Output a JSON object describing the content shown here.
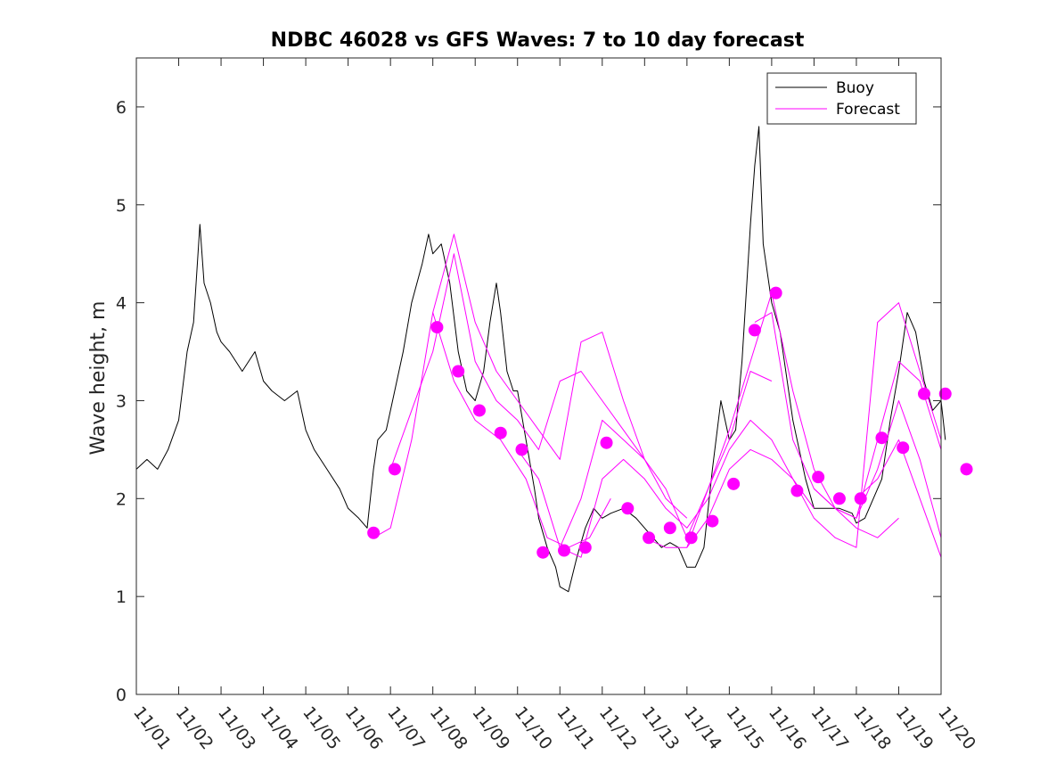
{
  "chart_data": {
    "type": "line",
    "title": "NDBC 46028 vs GFS Waves: 7 to 10 day forecast",
    "xlabel": "",
    "ylabel": "Wave height, m",
    "xlim": [
      0,
      19
    ],
    "ylim": [
      0,
      6.5
    ],
    "x_unit": "days since 11/01",
    "x_tick_labels": [
      "11/01",
      "11/02",
      "11/03",
      "11/04",
      "11/05",
      "11/06",
      "11/07",
      "11/08",
      "11/09",
      "11/10",
      "11/11",
      "11/12",
      "11/13",
      "11/14",
      "11/15",
      "11/16",
      "11/17",
      "11/18",
      "11/19",
      "11/20"
    ],
    "y_ticks": [
      0,
      1,
      2,
      3,
      4,
      5,
      6
    ],
    "y_tick_labels": [
      "0",
      "1",
      "2",
      "3",
      "4",
      "5",
      "6"
    ],
    "legend": {
      "position": "top-right",
      "entries": [
        {
          "label": "Buoy",
          "color": "#000000"
        },
        {
          "label": "Forecast",
          "color": "#ff00ff"
        }
      ]
    },
    "series": [
      {
        "name": "Buoy",
        "color": "#000000",
        "x": [
          0,
          0.25,
          0.5,
          0.75,
          1.0,
          1.2,
          1.35,
          1.5,
          1.6,
          1.75,
          1.9,
          2.0,
          2.2,
          2.5,
          2.8,
          3.0,
          3.2,
          3.5,
          3.8,
          4.0,
          4.2,
          4.5,
          4.8,
          5.0,
          5.25,
          5.45,
          5.6,
          5.7,
          5.9,
          6.1,
          6.3,
          6.5,
          6.75,
          6.9,
          7.0,
          7.2,
          7.4,
          7.6,
          7.8,
          8.0,
          8.2,
          8.35,
          8.5,
          8.6,
          8.75,
          8.9,
          9.0,
          9.2,
          9.4,
          9.5,
          9.7,
          9.9,
          10.0,
          10.2,
          10.4,
          10.6,
          10.8,
          11.0,
          11.2,
          11.5,
          11.8,
          12.0,
          12.2,
          12.4,
          12.6,
          12.8,
          13.0,
          13.2,
          13.4,
          13.6,
          13.8,
          14.0,
          14.15,
          14.3,
          14.5,
          14.6,
          14.7,
          14.8,
          15.0,
          15.2,
          15.5,
          15.8,
          16.0,
          16.3,
          16.6,
          16.9,
          17.0,
          17.2,
          17.4,
          17.6,
          17.8,
          18.0,
          18.2,
          18.4,
          18.6,
          18.8,
          19.0,
          19.1
        ],
        "values": [
          2.3,
          2.4,
          2.3,
          2.5,
          2.8,
          3.5,
          3.8,
          4.8,
          4.2,
          4.0,
          3.7,
          3.6,
          3.5,
          3.3,
          3.5,
          3.2,
          3.1,
          3.0,
          3.1,
          2.7,
          2.5,
          2.3,
          2.1,
          1.9,
          1.8,
          1.7,
          2.3,
          2.6,
          2.7,
          3.1,
          3.5,
          4.0,
          4.4,
          4.7,
          4.5,
          4.6,
          4.2,
          3.5,
          3.1,
          3.0,
          3.3,
          3.8,
          4.2,
          3.9,
          3.3,
          3.1,
          3.1,
          2.6,
          2.1,
          1.8,
          1.5,
          1.3,
          1.1,
          1.05,
          1.4,
          1.7,
          1.9,
          1.8,
          1.85,
          1.9,
          1.8,
          1.7,
          1.6,
          1.5,
          1.55,
          1.5,
          1.3,
          1.3,
          1.5,
          2.3,
          3.0,
          2.6,
          2.7,
          3.4,
          4.8,
          5.4,
          5.8,
          4.6,
          4.0,
          3.7,
          2.8,
          2.2,
          1.9,
          1.9,
          1.9,
          1.85,
          1.75,
          1.8,
          2.0,
          2.2,
          2.8,
          3.3,
          3.9,
          3.7,
          3.2,
          2.9,
          3.0,
          2.6
        ]
      },
      {
        "name": "Forecast",
        "color": "#ff00ff",
        "x": [
          5.6,
          6.0,
          6.5,
          7.0,
          7.5,
          8.0,
          8.6,
          9.2,
          9.7,
          10.2,
          10.7,
          11.2
        ],
        "values": [
          1.6,
          1.7,
          2.6,
          3.9,
          3.2,
          2.8,
          2.6,
          2.2,
          1.6,
          1.5,
          1.6,
          2.0
        ]
      },
      {
        "name": "Forecast",
        "color": "#ff00ff",
        "x": [
          6.0,
          6.5,
          7.0,
          7.5,
          8.0,
          8.5,
          9.0,
          9.5,
          10.0,
          10.5,
          11.0,
          11.5,
          12.0
        ],
        "values": [
          2.3,
          2.9,
          3.5,
          4.5,
          3.4,
          3.0,
          2.8,
          2.5,
          3.2,
          3.3,
          3.0,
          2.7,
          2.4
        ]
      },
      {
        "name": "Forecast",
        "color": "#ff00ff",
        "x": [
          7.0,
          7.5,
          8.0,
          8.5,
          9.0,
          9.5,
          10.0,
          10.5,
          11.0,
          11.5,
          12.0,
          12.5,
          13.0
        ],
        "values": [
          3.9,
          4.7,
          3.8,
          3.3,
          3.0,
          2.7,
          2.4,
          3.6,
          3.7,
          3.0,
          2.4,
          2.0,
          1.8
        ]
      },
      {
        "name": "Forecast",
        "color": "#ff00ff",
        "x": [
          9.0,
          9.5,
          10.0,
          10.5,
          11.0,
          11.5,
          12.0,
          12.5,
          13.0,
          13.5,
          14.0,
          14.5,
          15.0
        ],
        "values": [
          2.5,
          2.2,
          1.5,
          2.0,
          2.8,
          2.6,
          2.4,
          2.1,
          1.6,
          2.1,
          2.6,
          3.3,
          3.2
        ]
      },
      {
        "name": "Forecast",
        "color": "#ff00ff",
        "x": [
          10.0,
          10.5,
          11.0,
          11.5,
          12.0,
          12.5,
          13.0,
          13.5,
          14.0,
          14.5,
          15.0,
          15.5,
          16.0
        ],
        "values": [
          1.5,
          1.4,
          2.2,
          2.4,
          2.2,
          1.9,
          1.7,
          2.0,
          2.5,
          2.8,
          2.6,
          2.2,
          1.9
        ]
      },
      {
        "name": "Forecast",
        "color": "#ff00ff",
        "x": [
          12.0,
          12.5,
          13.0,
          13.5,
          14.0,
          14.5,
          15.0,
          15.5,
          16.0,
          16.5,
          17.0,
          17.5,
          18.0
        ],
        "values": [
          1.6,
          1.5,
          1.5,
          2.1,
          2.7,
          3.4,
          4.1,
          3.1,
          2.3,
          1.9,
          1.7,
          1.6,
          1.8
        ]
      },
      {
        "name": "Forecast",
        "color": "#ff00ff",
        "x": [
          13.0,
          13.5,
          14.0,
          14.5,
          15.0,
          15.5,
          16.0,
          16.5,
          17.0,
          17.5,
          18.0,
          18.5,
          19.0
        ],
        "values": [
          1.5,
          1.8,
          2.3,
          2.5,
          2.4,
          2.2,
          1.8,
          1.6,
          1.5,
          3.8,
          4.0,
          3.3,
          2.6
        ]
      },
      {
        "name": "Forecast",
        "color": "#ff00ff",
        "x": [
          14.6,
          15.0,
          15.5,
          16.0,
          16.5,
          17.0,
          17.5,
          18.0,
          18.5,
          19.0
        ],
        "values": [
          3.8,
          3.9,
          2.6,
          2.1,
          1.9,
          1.8,
          2.6,
          3.4,
          3.2,
          2.5
        ]
      },
      {
        "name": "Forecast",
        "color": "#ff00ff",
        "x": [
          16.0,
          16.5,
          17.0,
          17.5,
          18.0,
          18.5,
          19.0
        ],
        "values": [
          2.1,
          1.9,
          1.8,
          2.3,
          3.0,
          2.4,
          1.6
        ]
      },
      {
        "name": "Forecast",
        "color": "#ff00ff",
        "x": [
          17.0,
          17.5,
          18.0,
          18.5,
          19.0
        ],
        "values": [
          2.0,
          2.2,
          2.6,
          2.0,
          1.4
        ]
      },
      {
        "name": "Forecast points",
        "color": "#ff00ff",
        "type": "scatter",
        "x": [
          5.6,
          6.1,
          7.1,
          7.6,
          8.1,
          8.6,
          9.1,
          9.6,
          10.1,
          10.6,
          11.1,
          11.6,
          12.1,
          12.6,
          13.1,
          13.6,
          14.1,
          14.6,
          15.1,
          15.6,
          16.1,
          16.6,
          17.1,
          17.6,
          18.1,
          18.6,
          19.1,
          19.6
        ],
        "values": [
          1.65,
          2.3,
          3.75,
          3.3,
          2.9,
          2.67,
          2.5,
          1.45,
          1.47,
          1.5,
          2.57,
          1.9,
          1.6,
          1.7,
          1.6,
          1.77,
          2.15,
          3.72,
          4.1,
          2.08,
          2.22,
          2.0,
          2.0,
          2.62,
          2.52,
          3.07,
          3.07,
          2.3
        ]
      }
    ]
  }
}
